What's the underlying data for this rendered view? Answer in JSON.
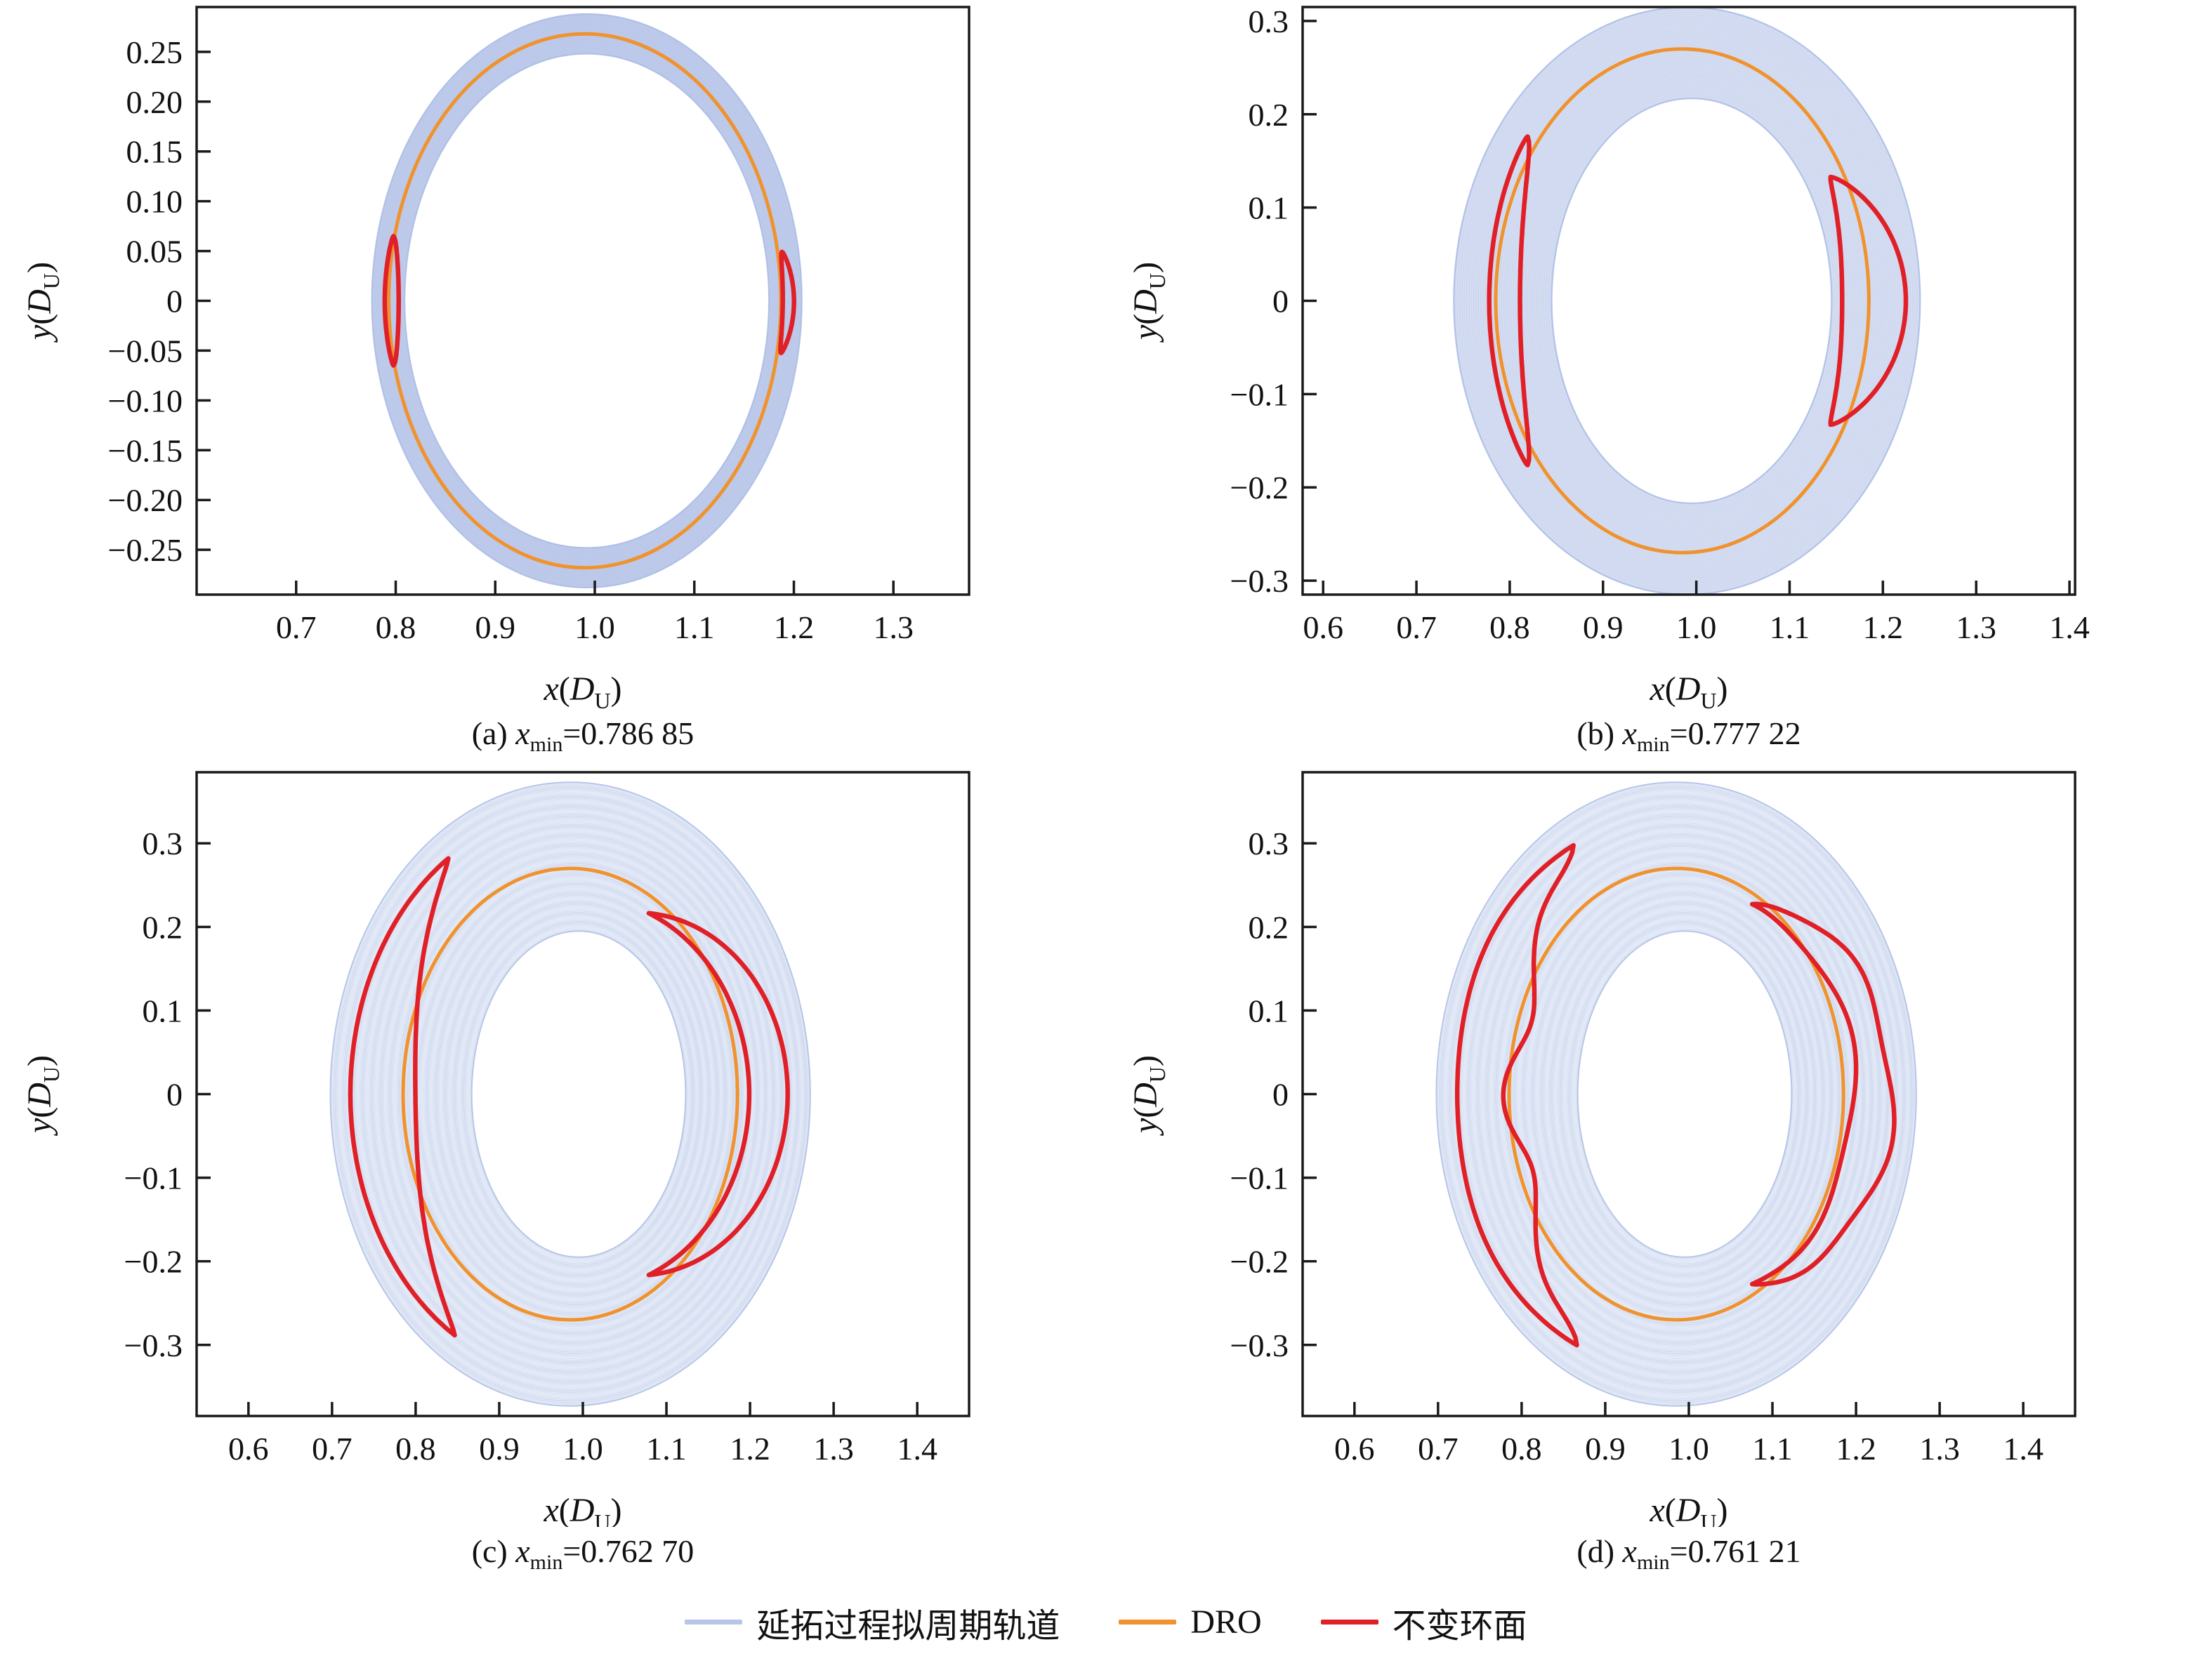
{
  "colors": {
    "family_fill": "#b7c5e8",
    "family_line": "#a9bce4",
    "dro": "#f0922d",
    "torus": "#e01f26",
    "axis": "#1a1a1a",
    "text": "#111111"
  },
  "axes": {
    "x_var": "x",
    "y_var": "y",
    "unit": "D",
    "unit_sub": "U"
  },
  "legend": {
    "items": [
      {
        "key": "family",
        "label": "延拓过程拟周期轨道",
        "color": "#b7c5e8"
      },
      {
        "key": "dro",
        "label": "DRO",
        "color": "#f0922d"
      },
      {
        "key": "torus",
        "label": "不变环面",
        "color": "#e01f26"
      }
    ]
  },
  "chart_data": [
    {
      "id": "a",
      "type": "line",
      "caption": {
        "index": "(a) ",
        "var": "x",
        "sub": "min",
        "value": "=0.786 85"
      },
      "xlabel": "x(DU)",
      "ylabel": "y(DU)",
      "xlim": [
        0.6,
        1.376
      ],
      "ylim": [
        -0.295,
        0.295
      ],
      "xticks": {
        "values": [
          0.7,
          0.8,
          0.9,
          1.0,
          1.1,
          1.2,
          1.3
        ],
        "labels": [
          "0.7",
          "0.8",
          "0.9",
          "1.0",
          "1.1",
          "1.2",
          "1.3"
        ]
      },
      "yticks": {
        "values": [
          0.25,
          0.2,
          0.15,
          0.1,
          0.05,
          0,
          -0.05,
          -0.1,
          -0.15,
          -0.2,
          -0.25
        ],
        "labels": [
          "0.25",
          "0.20",
          "0.15",
          "0.10",
          "0.05",
          "0",
          "−0.05",
          "−0.10",
          "−0.15",
          "−0.20",
          "−0.25"
        ]
      },
      "band": {
        "outer": {
          "cx": 0.992,
          "cy": 0,
          "rx": 0.216,
          "ry": 0.288
        },
        "inner": {
          "cx": 0.992,
          "cy": 0,
          "rx": 0.183,
          "ry": 0.248
        },
        "fill_opacity": 1.0,
        "texture": "white",
        "lines": 18,
        "line_opacity": 0.1
      },
      "dro": {
        "cx": 0.99,
        "cy": 0,
        "rx": 0.197,
        "ry": 0.268
      },
      "tori": [
        {
          "cx": 0.993,
          "cy": 0,
          "rx": 0.2,
          "ry": 0.3,
          "t1": 167.5,
          "t2": 192.5,
          "amp_out": 0.02,
          "amp_in": -0.05,
          "p": 0.6
        },
        {
          "cx": 0.99,
          "cy": 0,
          "rx": 0.205,
          "ry": 0.19,
          "t1": -16,
          "t2": 15,
          "amp_out": 0.025,
          "amp_in": -0.03,
          "p": 0.6
        }
      ]
    },
    {
      "id": "b",
      "type": "line",
      "caption": {
        "index": "(b) ",
        "var": "x",
        "sub": "min",
        "value": "=0.777 22"
      },
      "xlabel": "x(DU)",
      "ylabel": "y(DU)",
      "xlim": [
        0.578,
        1.406
      ],
      "ylim": [
        -0.315,
        0.315
      ],
      "xticks": {
        "values": [
          0.6,
          0.7,
          0.8,
          0.9,
          1.0,
          1.1,
          1.2,
          1.3,
          1.4
        ],
        "labels": [
          "0.6",
          "0.7",
          "0.8",
          "0.9",
          "1.0",
          "1.1",
          "1.2",
          "1.3",
          "1.4"
        ]
      },
      "yticks": {
        "values": [
          0.3,
          0.2,
          0.1,
          0,
          -0.1,
          -0.2,
          -0.3
        ],
        "labels": [
          "0.3",
          "0.2",
          "0.1",
          "0",
          "−0.1",
          "−0.2",
          "−0.3"
        ]
      },
      "band": {
        "outer": {
          "cx": 0.99,
          "cy": 0,
          "rx": 0.25,
          "ry": 0.315
        },
        "inner": {
          "cx": 0.995,
          "cy": 0,
          "rx": 0.15,
          "ry": 0.217
        },
        "fill_opacity": 0.75,
        "texture": "white",
        "lines": 42,
        "line_opacity": 0.22
      },
      "dro": {
        "cx": 0.985,
        "cy": 0,
        "rx": 0.2,
        "ry": 0.27
      },
      "tori": [
        {
          "cx": 0.985,
          "cy": 0,
          "rx": 0.2,
          "ry": 0.315,
          "t1": 146,
          "t2": 214,
          "amp_out": 0.035,
          "amp_in": -0.13,
          "p": 0.6
        },
        {
          "cx": 0.99,
          "cy": 0,
          "rx": 0.198,
          "ry": 0.211,
          "t1": -39,
          "t2": 39,
          "amp_out": 0.185,
          "amp_in": -0.16,
          "p": 0.8
        }
      ]
    },
    {
      "id": "c",
      "type": "line",
      "caption": {
        "index": "(c) ",
        "var": "x",
        "sub": "min",
        "value": "=0.762 70"
      },
      "xlabel": "x(DU)",
      "ylabel": "y(DU)",
      "xlim": [
        0.538,
        1.462
      ],
      "ylim": [
        -0.385,
        0.385
      ],
      "xticks": {
        "values": [
          0.6,
          0.7,
          0.8,
          0.9,
          1.0,
          1.1,
          1.2,
          1.3,
          1.4
        ],
        "labels": [
          "0.6",
          "0.7",
          "0.8",
          "0.9",
          "1.0",
          "1.1",
          "1.2",
          "1.3",
          "1.4"
        ]
      },
      "yticks": {
        "values": [
          0.3,
          0.2,
          0.1,
          0,
          -0.1,
          -0.2,
          -0.3
        ],
        "labels": [
          "0.3",
          "0.2",
          "0.1",
          "0",
          "−0.1",
          "−0.2",
          "−0.3"
        ]
      },
      "band": {
        "outer": {
          "cx": 0.985,
          "cy": 0,
          "rx": 0.287,
          "ry": 0.373
        },
        "inner": {
          "cx": 0.995,
          "cy": 0,
          "rx": 0.128,
          "ry": 0.195
        },
        "fill_opacity": 0.26,
        "texture": "blue",
        "lines": 88,
        "line_opacity": 0.45
      },
      "dro": {
        "cx": 0.985,
        "cy": 0,
        "rx": 0.2,
        "ry": 0.27
      },
      "tori": [
        {
          "cx": 0.985,
          "cy": 0,
          "rx": 0.261,
          "ry": 0.34,
          "t1": 124,
          "t2": 238,
          "amp_out": 0.008,
          "amp_in": -0.29,
          "p": 0.85
        },
        {
          "cx": 0.985,
          "cy": 0,
          "rx": 0.2,
          "ry": 0.245,
          "t1": -62,
          "t2": 62,
          "amp_out": 0.3,
          "amp_in": 0.07,
          "p": 1.0
        }
      ]
    },
    {
      "id": "d",
      "type": "line",
      "caption": {
        "index": "(d) ",
        "var": "x",
        "sub": "min",
        "value": "=0.761 21"
      },
      "xlabel": "x(DU)",
      "ylabel": "y(DU)",
      "xlim": [
        0.538,
        1.462
      ],
      "ylim": [
        -0.385,
        0.385
      ],
      "xticks": {
        "values": [
          0.6,
          0.7,
          0.8,
          0.9,
          1.0,
          1.1,
          1.2,
          1.3,
          1.4
        ],
        "labels": [
          "0.6",
          "0.7",
          "0.8",
          "0.9",
          "1.0",
          "1.1",
          "1.2",
          "1.3",
          "1.4"
        ]
      },
      "yticks": {
        "values": [
          0.3,
          0.2,
          0.1,
          0,
          -0.1,
          -0.2,
          -0.3
        ],
        "labels": [
          "0.3",
          "0.2",
          "0.1",
          "0",
          "−0.1",
          "−0.2",
          "−0.3"
        ]
      },
      "band": {
        "outer": {
          "cx": 0.985,
          "cy": 0,
          "rx": 0.287,
          "ry": 0.373
        },
        "inner": {
          "cx": 0.995,
          "cy": 0,
          "rx": 0.128,
          "ry": 0.195
        },
        "fill_opacity": 0.26,
        "texture": "blue",
        "lines": 88,
        "line_opacity": 0.45
      },
      "dro": {
        "cx": 0.985,
        "cy": 0,
        "rx": 0.2,
        "ry": 0.27
      },
      "tori": [
        {
          "cx": 0.985,
          "cy": 0,
          "rx": 0.262,
          "ry": 0.337,
          "t1": 118,
          "t2": 243,
          "amp_out": 0.012,
          "amp_in": -0.27,
          "p": 0.7,
          "wiggle_in": 0.06,
          "wf_in": 5,
          "wiggle_out": 0.012,
          "wf_out": 3
        },
        {
          "cx": 0.985,
          "cy": 0,
          "rx": 0.2,
          "ry": 0.255,
          "t1": -63,
          "t2": 63,
          "amp_out": 0.29,
          "amp_in": 0.065,
          "p": 0.9,
          "wiggle_in": 0.03,
          "wf_in": 4,
          "wiggle_out": 0.03,
          "wf_out": 6
        }
      ]
    }
  ]
}
